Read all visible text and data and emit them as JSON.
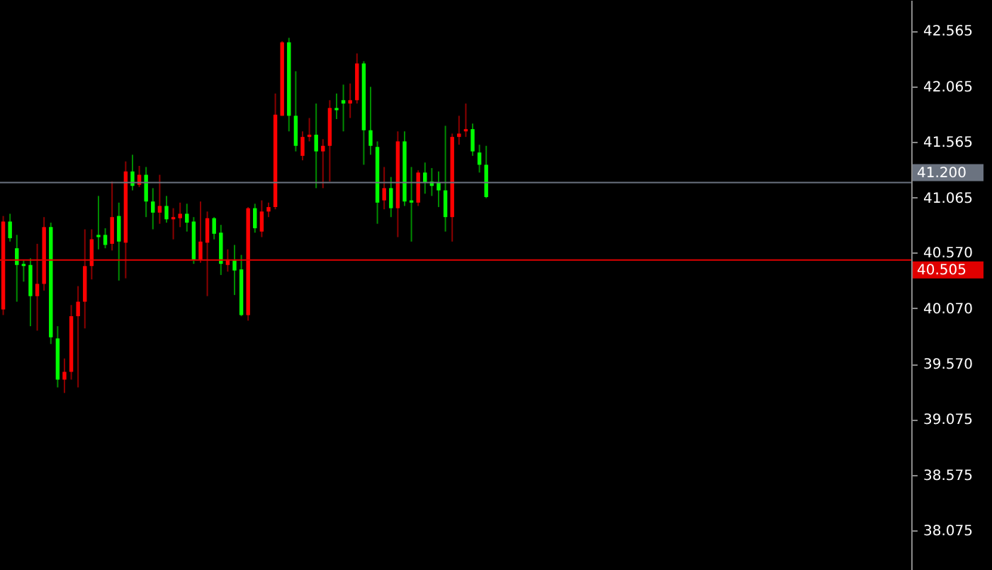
{
  "chart_data": {
    "type": "candlestick",
    "categories": [
      null,
      null,
      null,
      null,
      null,
      null,
      null,
      null,
      null,
      null,
      null,
      null,
      null,
      null,
      null,
      null,
      null,
      null,
      null,
      null,
      null,
      null,
      null,
      null,
      null,
      null,
      null,
      null,
      null,
      null,
      null,
      null,
      null,
      null,
      null,
      null,
      null,
      null,
      null,
      null,
      null,
      null,
      null,
      null,
      null,
      null,
      null,
      null,
      null,
      null,
      null,
      null,
      null,
      null,
      null,
      null,
      null,
      null,
      null,
      null,
      null,
      null,
      null,
      null,
      null,
      null,
      null,
      null,
      null,
      null,
      null,
      null,
      null,
      null,
      null,
      null,
      null,
      null,
      null,
      null,
      null,
      null,
      null,
      null,
      null,
      null,
      null,
      null,
      null,
      null,
      null,
      null,
      null,
      null,
      null,
      null,
      null,
      null,
      null,
      null,
      null,
      null,
      null,
      null,
      null,
      null,
      null,
      null,
      null,
      null,
      null,
      null,
      null,
      null,
      null,
      null,
      null,
      null,
      null,
      null,
      null,
      null,
      null,
      null,
      null,
      null,
      null,
      null,
      null,
      null,
      null,
      null,
      null,
      null
    ],
    "ohlc": [
      [
        40.06,
        40.9,
        40.01,
        40.85
      ],
      [
        40.85,
        40.92,
        40.67,
        40.7
      ],
      [
        40.61,
        40.73,
        40.13,
        40.46
      ],
      [
        40.47,
        40.5,
        40.31,
        40.45
      ],
      [
        40.46,
        40.52,
        39.91,
        40.18
      ],
      [
        40.18,
        40.65,
        39.87,
        40.29
      ],
      [
        40.29,
        40.89,
        40.23,
        40.8
      ],
      [
        40.8,
        40.84,
        39.75,
        39.81
      ],
      [
        39.8,
        39.91,
        39.36,
        39.43
      ],
      [
        39.43,
        39.62,
        39.31,
        39.5
      ],
      [
        39.5,
        40.1,
        39.43,
        40.0
      ],
      [
        40.0,
        40.27,
        39.36,
        40.13
      ],
      [
        40.13,
        40.78,
        39.89,
        40.45
      ],
      [
        40.45,
        40.78,
        40.33,
        40.69
      ],
      [
        40.73,
        41.08,
        40.6,
        40.71
      ],
      [
        40.73,
        40.79,
        40.61,
        40.64
      ],
      [
        40.65,
        41.21,
        40.59,
        40.89
      ],
      [
        40.9,
        41.02,
        40.32,
        40.67
      ],
      [
        40.66,
        41.39,
        40.34,
        41.3
      ],
      [
        41.3,
        41.45,
        41.13,
        41.17
      ],
      [
        41.18,
        41.35,
        41.16,
        41.27
      ],
      [
        41.27,
        41.34,
        40.89,
        41.03
      ],
      [
        41.03,
        41.15,
        40.78,
        40.93
      ],
      [
        40.93,
        41.27,
        40.83,
        40.99
      ],
      [
        40.99,
        41.08,
        40.84,
        40.87
      ],
      [
        40.87,
        40.97,
        40.69,
        40.89
      ],
      [
        40.88,
        41.02,
        40.8,
        40.92
      ],
      [
        40.92,
        41.01,
        40.76,
        40.84
      ],
      [
        40.85,
        40.89,
        40.47,
        40.51
      ],
      [
        40.51,
        41.03,
        40.48,
        40.67
      ],
      [
        40.66,
        40.94,
        40.18,
        40.88
      ],
      [
        40.88,
        40.89,
        40.69,
        40.74
      ],
      [
        40.75,
        40.82,
        40.37,
        40.47
      ],
      [
        40.46,
        40.6,
        40.4,
        40.51
      ],
      [
        40.5,
        40.64,
        40.19,
        40.41
      ],
      [
        40.42,
        40.55,
        40.0,
        40.01
      ],
      [
        40.01,
        40.98,
        39.96,
        40.97
      ],
      [
        40.97,
        41.01,
        40.75,
        40.79
      ],
      [
        40.76,
        41.04,
        40.71,
        40.94
      ],
      [
        40.94,
        41.02,
        40.89,
        40.98
      ],
      [
        40.98,
        42.0,
        40.96,
        41.81
      ],
      [
        41.8,
        42.47,
        41.8,
        42.46
      ],
      [
        42.46,
        42.5,
        41.66,
        41.8
      ],
      [
        41.8,
        42.2,
        41.48,
        41.53
      ],
      [
        41.44,
        41.66,
        41.4,
        41.61
      ],
      [
        41.61,
        41.78,
        41.57,
        41.63
      ],
      [
        41.63,
        41.91,
        41.15,
        41.48
      ],
      [
        41.48,
        41.59,
        41.15,
        41.53
      ],
      [
        41.53,
        41.94,
        41.21,
        41.87
      ],
      [
        41.87,
        42.0,
        41.77,
        41.85
      ],
      [
        41.94,
        42.08,
        41.66,
        41.91
      ],
      [
        41.91,
        42.09,
        41.78,
        41.94
      ],
      [
        41.94,
        42.36,
        41.91,
        42.27
      ],
      [
        42.27,
        42.29,
        41.36,
        41.67
      ],
      [
        41.67,
        42.06,
        41.45,
        41.53
      ],
      [
        41.52,
        41.57,
        40.83,
        41.02
      ],
      [
        41.04,
        41.34,
        40.96,
        41.15
      ],
      [
        41.15,
        41.25,
        40.89,
        40.97
      ],
      [
        40.97,
        41.66,
        40.71,
        41.57
      ],
      [
        41.57,
        41.66,
        40.99,
        41.03
      ],
      [
        41.04,
        41.34,
        40.67,
        41.02
      ],
      [
        41.02,
        41.31,
        40.99,
        41.29
      ],
      [
        41.29,
        41.38,
        41.1,
        41.2
      ],
      [
        41.21,
        41.33,
        41.08,
        41.17
      ],
      [
        41.2,
        41.3,
        40.98,
        41.13
      ],
      [
        41.13,
        41.71,
        40.76,
        40.89
      ],
      [
        40.89,
        41.64,
        40.67,
        41.61
      ],
      [
        41.61,
        41.8,
        41.54,
        41.64
      ],
      [
        41.66,
        41.91,
        41.61,
        41.68
      ],
      [
        41.68,
        41.73,
        41.44,
        41.48
      ],
      [
        41.47,
        41.54,
        41.29,
        41.36
      ],
      [
        41.36,
        41.53,
        41.06,
        41.07
      ],
      null,
      null,
      null,
      null,
      null,
      null,
      null,
      null,
      null,
      null,
      null,
      null,
      null,
      null,
      null,
      null,
      null,
      null,
      null,
      null,
      null,
      null,
      null,
      null,
      null,
      null,
      null,
      null,
      null,
      null,
      null,
      null,
      null,
      null,
      null,
      null,
      null,
      null,
      null,
      null,
      null,
      null,
      null,
      null,
      null,
      null,
      null,
      null,
      null,
      null,
      null,
      null,
      null,
      null,
      null,
      null,
      null,
      null,
      null,
      null,
      null,
      null
    ],
    "colors": [
      "#ff0000",
      "#00ff00",
      "#00ff00",
      "#00ff00",
      "#00ff00",
      "#ff0000",
      "#ff0000",
      "#00ff00",
      "#00ff00",
      "#ff0000",
      "#ff0000",
      "#ff0000",
      "#ff0000",
      "#ff0000",
      "#00ff00",
      "#00ff00",
      "#ff0000",
      "#00ff00",
      "#ff0000",
      "#00ff00",
      "#ff0000",
      "#00ff00",
      "#00ff00",
      "#ff0000",
      "#00ff00",
      "#ff0000",
      "#ff0000",
      "#00ff00",
      "#00ff00",
      "#ff0000",
      "#ff0000",
      "#00ff00",
      "#00ff00",
      "#ff0000",
      "#00ff00",
      "#00ff00",
      "#ff0000",
      "#00ff00",
      "#ff0000",
      "#ff0000",
      "#ff0000",
      "#ff0000",
      "#00ff00",
      "#00ff00",
      "#ff0000",
      "#ff0000",
      "#00ff00",
      "#ff0000",
      "#ff0000",
      "#00ff00",
      "#00ff00",
      "#ff0000",
      "#ff0000",
      "#00ff00",
      "#00ff00",
      "#00ff00",
      "#ff0000",
      "#00ff00",
      "#ff0000",
      "#00ff00",
      "#00ff00",
      "#ff0000",
      "#00ff00",
      "#00ff00",
      "#00ff00",
      "#00ff00",
      "#ff0000",
      "#ff0000",
      "#ff0000",
      "#00ff00",
      "#00ff00",
      "#00ff00",
      null,
      null,
      null,
      null,
      null,
      null,
      null,
      null,
      null,
      null,
      null,
      null,
      null,
      null,
      null,
      null,
      null,
      null,
      null,
      null,
      null,
      null,
      null,
      null,
      null,
      null,
      null,
      null,
      null,
      null,
      null,
      null,
      null,
      null,
      null,
      null,
      null,
      null,
      null,
      null,
      null,
      null,
      null,
      null,
      null,
      null,
      null,
      null,
      null,
      null,
      null,
      null,
      null,
      null,
      null,
      null,
      null,
      null,
      null,
      null,
      null,
      null
    ],
    "ylim": [
      37.72,
      42.84
    ],
    "yticks": [
      42.565,
      42.065,
      41.565,
      41.065,
      {
        "value": 40.57,
        "label": "40.570"
      },
      {
        "value": 40.07,
        "label": "40.070"
      },
      {
        "value": 39.57,
        "label": "39.570"
      },
      39.075,
      38.575,
      38.075
    ],
    "ref_lines": [
      {
        "axis": "y",
        "value": 41.2,
        "label": "41.200",
        "color": "#6b7380"
      },
      {
        "axis": "y",
        "value": 40.505,
        "label": "40.505",
        "color": "#e00000"
      }
    ],
    "tick_labels": "y",
    "grid": false
  }
}
